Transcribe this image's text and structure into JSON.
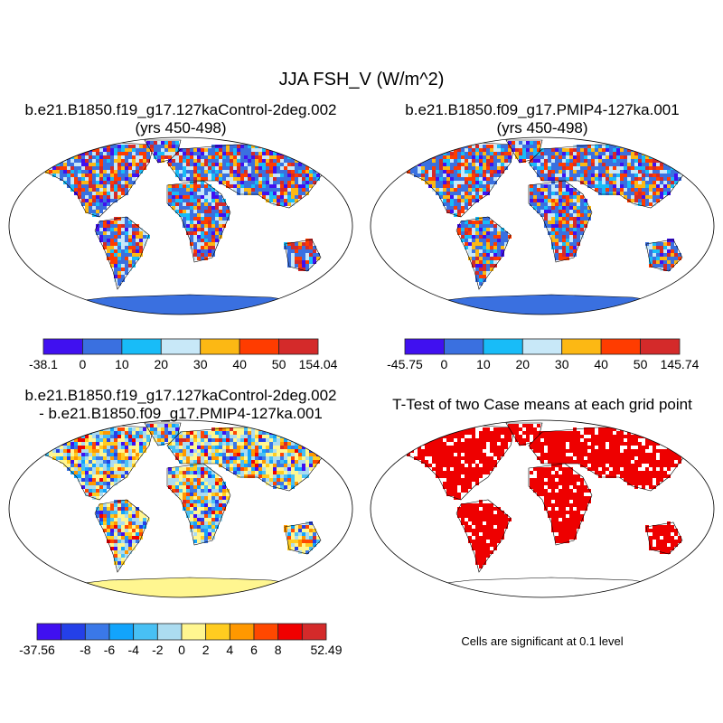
{
  "title": "JJA FSH_V (W/m^2)",
  "panels": [
    {
      "title1": "b.e21.B1850.f19_g17.127kaControl-2deg.002",
      "title2": "(yrs 450-498)"
    },
    {
      "title1": "b.e21.B1850.f09_g17.PMIP4-127ka.001",
      "title2": "(yrs 450-498)"
    },
    {
      "title1": "b.e21.B1850.f19_g17.127kaControl-2deg.002",
      "title2": "- b.e21.B1850.f09_g17.PMIP4-127ka.001"
    },
    {
      "title1": "T-Test of two Case means at each grid point",
      "note": "Cells are significant at 0.1 level"
    }
  ],
  "colorbars": [
    {
      "colors": [
        "#4010f0",
        "#3a70e0",
        "#18bcf8",
        "#c8e8f8",
        "#fcb814",
        "#ff3c00",
        "#d42a2a"
      ],
      "labels": [
        "-38.1",
        "0",
        "10",
        "20",
        "30",
        "40",
        "50",
        "154.04"
      ]
    },
    {
      "colors": [
        "#4010f0",
        "#3a70e0",
        "#18bcf8",
        "#c8e8f8",
        "#fcb814",
        "#ff3c00",
        "#d42a2a"
      ],
      "labels": [
        "-45.75",
        "0",
        "10",
        "20",
        "30",
        "40",
        "50",
        "145.74"
      ]
    },
    {
      "colors": [
        "#4010f0",
        "#2440e8",
        "#3a78e8",
        "#12a4fc",
        "#48c0f4",
        "#acdcf0",
        "#fff690",
        "#ffcc20",
        "#ff9800",
        "#ff4800",
        "#f00000",
        "#d42a2a"
      ],
      "labels": [
        "-37.56",
        "",
        "-8",
        "-6",
        "-4",
        "-2",
        "0",
        "2",
        "4",
        "6",
        "8",
        "",
        "52.49"
      ]
    }
  ],
  "significance_color": "#ee0000"
}
